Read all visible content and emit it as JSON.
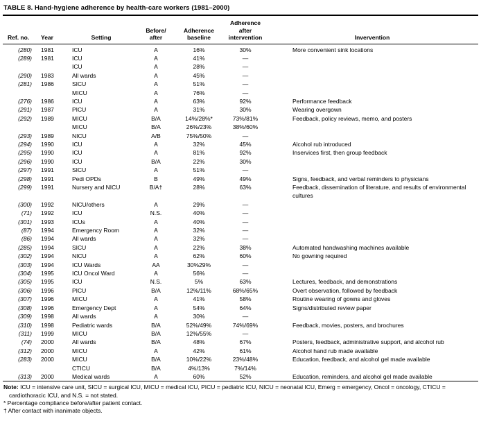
{
  "table": {
    "title": "TABLE 8. Hand-hygiene adherence by health-care workers (1981–2000)",
    "columns": {
      "ref": "Ref. no.",
      "year": "Year",
      "setting": "Setting",
      "before_after": "Before/\nafter",
      "baseline": "Adherence\nbaseline",
      "after_intervention": "Adherence\nafter\nintervention",
      "intervention": "Invervention"
    },
    "rows": [
      [
        "(280)",
        "1981",
        "ICU",
        "A",
        "16%",
        "30%",
        "More convenient sink locations"
      ],
      [
        "(289)",
        "1981",
        "ICU",
        "A",
        "41%",
        "—",
        ""
      ],
      [
        "",
        "",
        "ICU",
        "A",
        "28%",
        "—",
        ""
      ],
      [
        "(290)",
        "1983",
        "All wards",
        "A",
        "45%",
        "—",
        ""
      ],
      [
        "(281)",
        "1986",
        "SICU",
        "A",
        "51%",
        "—",
        ""
      ],
      [
        "",
        "",
        "MICU",
        "A",
        "76%",
        "—",
        ""
      ],
      [
        "(276)",
        "1986",
        "ICU",
        "A",
        "63%",
        "92%",
        "Performance feedback"
      ],
      [
        "(291)",
        "1987",
        "PICU",
        "A",
        "31%",
        "30%",
        "Wearing overgown"
      ],
      [
        "(292)",
        "1989",
        "MICU",
        "B/A",
        "14%/28%*",
        "73%/81%",
        "Feedback, policy reviews, memo, and posters"
      ],
      [
        "",
        "",
        "MICU",
        "B/A",
        "26%/23%",
        "38%/60%",
        ""
      ],
      [
        "(293)",
        "1989",
        "NICU",
        "A/B",
        "75%/50%",
        "—",
        ""
      ],
      [
        "(294)",
        "1990",
        "ICU",
        "A",
        "32%",
        "45%",
        "Alcohol rub introduced"
      ],
      [
        "(295)",
        "1990",
        "ICU",
        "A",
        "81%",
        "92%",
        "Inservices first, then group feedback"
      ],
      [
        "(296)",
        "1990",
        "ICU",
        "B/A",
        "22%",
        "30%",
        ""
      ],
      [
        "(297)",
        "1991",
        "SICU",
        "A",
        "51%",
        "—",
        ""
      ],
      [
        "(298)",
        "1991",
        "Pedi OPDs",
        "B",
        "49%",
        "49%",
        "Signs, feedback, and verbal reminders to physicians"
      ],
      [
        "(299)",
        "1991",
        "Nursery and NICU",
        "B/A†",
        "28%",
        "63%",
        "Feedback, dissemination of literature, and results of environmental cultures"
      ],
      [
        "(300)",
        "1992",
        "NICU/others",
        "A",
        "29%",
        "—",
        ""
      ],
      [
        "(71)",
        "1992",
        "ICU",
        "N.S.",
        "40%",
        "—",
        ""
      ],
      [
        "(301)",
        "1993",
        "ICUs",
        "A",
        "40%",
        "—",
        ""
      ],
      [
        "(87)",
        "1994",
        "Emergency Room",
        "A",
        "32%",
        "—",
        ""
      ],
      [
        "(86)",
        "1994",
        "All wards",
        "A",
        "32%",
        "—",
        ""
      ],
      [
        "(285)",
        "1994",
        "SICU",
        "A",
        "22%",
        "38%",
        "Automated handwashing machines available"
      ],
      [
        "(302)",
        "1994",
        "NICU",
        "A",
        "62%",
        "60%",
        "No gowning required"
      ],
      [
        "(303)",
        "1994",
        "ICU Wards",
        "AA",
        "30%29%",
        "—",
        ""
      ],
      [
        "(304)",
        "1995",
        "ICU Oncol Ward",
        "A",
        "56%",
        "—",
        ""
      ],
      [
        "(305)",
        "1995",
        "ICU",
        "N.S.",
        "5%",
        "63%",
        "Lectures, feedback, and demonstrations"
      ],
      [
        "(306)",
        "1996",
        "PICU",
        "B/A",
        "12%/11%",
        "68%/65%",
        "Overt observation, followed by feedback"
      ],
      [
        "(307)",
        "1996",
        "MICU",
        "A",
        "41%",
        "58%",
        "Routine wearing of gowns and gloves"
      ],
      [
        "(308)",
        "1996",
        "Emergency Dept",
        "A",
        "54%",
        "64%",
        "Signs/distributed review paper"
      ],
      [
        "(309)",
        "1998",
        "All wards",
        "A",
        "30%",
        "—",
        ""
      ],
      [
        "(310)",
        "1998",
        "Pediatric wards",
        "B/A",
        "52%/49%",
        "74%/69%",
        "Feedback, movies, posters, and brochures"
      ],
      [
        "(311)",
        "1999",
        "MICU",
        "B/A",
        "12%/55%",
        "—",
        ""
      ],
      [
        "(74)",
        "2000",
        "All wards",
        "B/A",
        "48%",
        "67%",
        "Posters, feedback, administrative support, and alcohol rub"
      ],
      [
        "(312)",
        "2000",
        "MICU",
        "A",
        "42%",
        "61%",
        "Alcohol hand rub made available"
      ],
      [
        "(283)",
        "2000",
        "MICU",
        "B/A",
        "10%/22%",
        "23%/48%",
        "Education, feedback, and alcohol gel made available"
      ],
      [
        "",
        "",
        "CTICU",
        "B/A",
        "4%/13%",
        "7%/14%",
        ""
      ],
      [
        "(313)",
        "2000",
        "Medical wards",
        "A",
        "60%",
        "52%",
        "Education, reminders, and alcohol gel made available"
      ]
    ],
    "footnotes": {
      "note_label": "Note:",
      "note_text": " ICU = intensive care unit, SICU = surgical ICU, MICU = medical ICU, PICU = pediatric ICU, NICU = neonatal ICU, Emerg = emergency, Oncol = oncology, CTICU = cardiothoracic ICU, and N.S. = not stated.",
      "asterisk_note": "* Percentage compliance before/after patient contact.",
      "dagger_note": "† After contact with inanimate objects."
    }
  }
}
